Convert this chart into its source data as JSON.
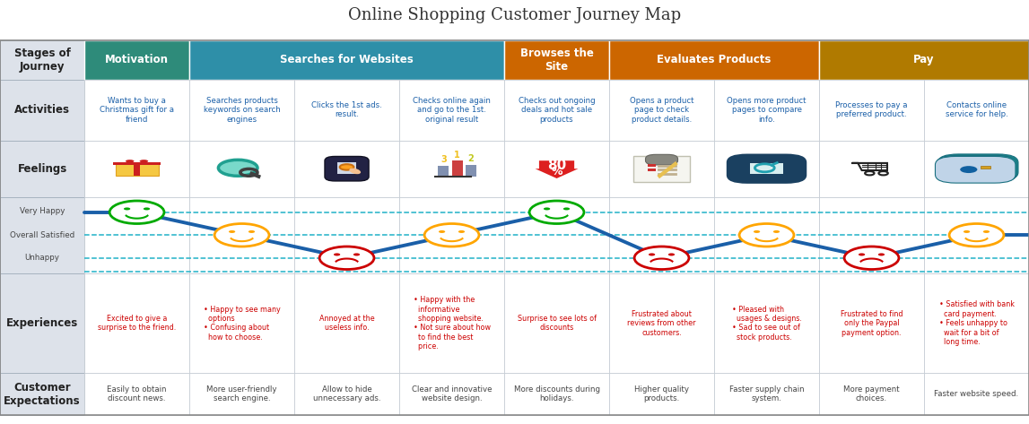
{
  "title": "Online Shopping Customer Journey Map",
  "title_fontsize": 13,
  "bg_color": "#ffffff",
  "stage_groups": [
    {
      "cols": [
        0,
        0
      ],
      "label": "Motivation",
      "color": "#2e8b7a"
    },
    {
      "cols": [
        1,
        3
      ],
      "label": "Searches for Websites",
      "color": "#2e8fa8"
    },
    {
      "cols": [
        4,
        4
      ],
      "label": "Browses the\nSite",
      "color": "#cc6600"
    },
    {
      "cols": [
        5,
        6
      ],
      "label": "Evaluates Products",
      "color": "#cc6600"
    },
    {
      "cols": [
        7,
        8
      ],
      "label": "Pay",
      "color": "#b07a00"
    }
  ],
  "activities": [
    "Wants to buy a\nChristmas gift for a\nfriend",
    "Searches products\nkeywords on search\nengines",
    "Clicks the 1st ads.\nresult.",
    "Checks online again\nand go to the 1st.\noriginal result",
    "Checks out ongoing\ndeals and hot sale\nproducts",
    "Opens a product\npage to check\nproduct details.",
    "Opens more product\npages to compare\ninfo.",
    "Processes to pay a\npreferred product.",
    "Contacts online\nservice for help."
  ],
  "experiences": [
    "Excited to give a\nsurprise to the friend.",
    "• Happy to see many\n  options\n• Confusing about\n  how to choose.",
    "Annoyed at the\nuseless info.",
    "• Happy with the\n  informative\n  shopping website.\n• Not sure about how\n  to find the best\n  price.",
    "Surprise to see lots of\ndiscounts",
    "Frustrated about\nreviews from other\ncustomers.",
    "• Pleased with\n  usages & designs.\n• Sad to see out of\n  stock products.",
    "Frustrated to find\nonly the Paypal\npayment option.",
    "• Satisfied with bank\n  card payment.\n• Feels unhappy to\n  wait for a bit of\n  long time."
  ],
  "expectations": [
    "Easily to obtain\ndiscount news.",
    "More user-friendly\nsearch engine.",
    "Allow to hide\nunnecessary ads.",
    "Clear and innovative\nwebsite design.",
    "More discounts during\nholidays.",
    "Higher quality\nproducts.",
    "Faster supply chain\nsystem.",
    "More payment\nchoices.",
    "Faster website speed."
  ],
  "emotion_levels": [
    3,
    2,
    1,
    2,
    3,
    1,
    2,
    1,
    2
  ],
  "emotion_colors": [
    "#00aa00",
    "#ffa500",
    "#cc0000",
    "#ffa500",
    "#00aa00",
    "#cc0000",
    "#ffa500",
    "#cc0000",
    "#ffa500"
  ],
  "line_color": "#1a5fa8",
  "dashed_line_color": "#20b2c8",
  "row_label_bg": "#dde2ea",
  "activity_text_color": "#1a5fa8",
  "experience_text_color": "#cc0000",
  "expectation_text_color": "#444444",
  "cell_bg": "#ffffff",
  "cell_border": "#c0c8d0"
}
